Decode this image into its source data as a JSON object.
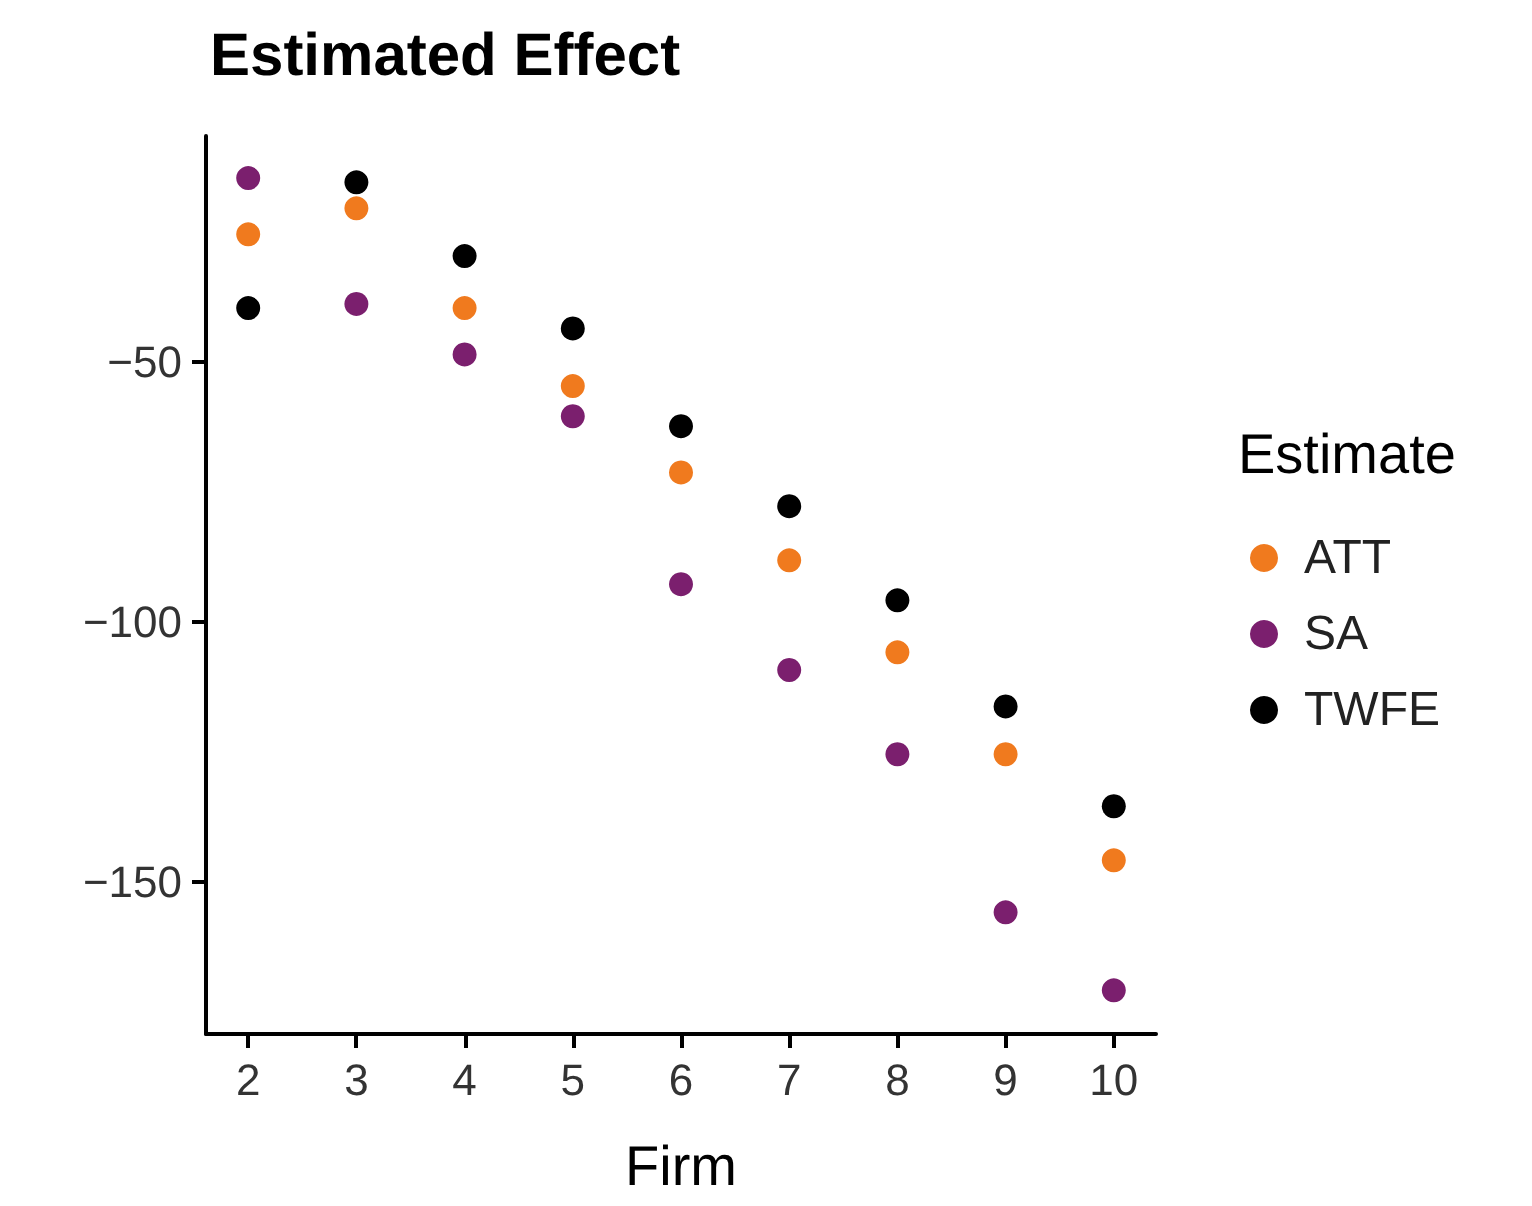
{
  "chart_data": {
    "type": "scatter",
    "title": "Estimated Effect",
    "xlabel": "Firm",
    "legend_title": "Estimate",
    "x": [
      2,
      3,
      4,
      5,
      6,
      7,
      8,
      9,
      10
    ],
    "series": [
      {
        "name": "ATT",
        "color": "#f07a1e",
        "values": [
          -25.4,
          -20.4,
          -39.6,
          -54.6,
          -71.2,
          -88.1,
          -105.8,
          -125.4,
          -145.8
        ]
      },
      {
        "name": "SA",
        "color": "#7b1f6e",
        "values": [
          -14.6,
          -38.8,
          -48.5,
          -60.4,
          -92.7,
          -109.2,
          -125.4,
          -155.8,
          -170.8
        ]
      },
      {
        "name": "TWFE",
        "color": "#000000",
        "values": [
          -39.6,
          -15.4,
          -29.6,
          -43.5,
          -62.3,
          -77.7,
          -95.8,
          -116.2,
          -135.4
        ]
      }
    ],
    "xlim": [
      1.61,
      10.39
    ],
    "xticks": [
      2,
      3,
      4,
      5,
      6,
      7,
      8,
      9,
      10
    ],
    "ylim": [
      -179.2,
      -6.5
    ],
    "yticks": [
      -150,
      -100,
      -50
    ],
    "grid": false,
    "legend": "right",
    "marker": "circle"
  }
}
